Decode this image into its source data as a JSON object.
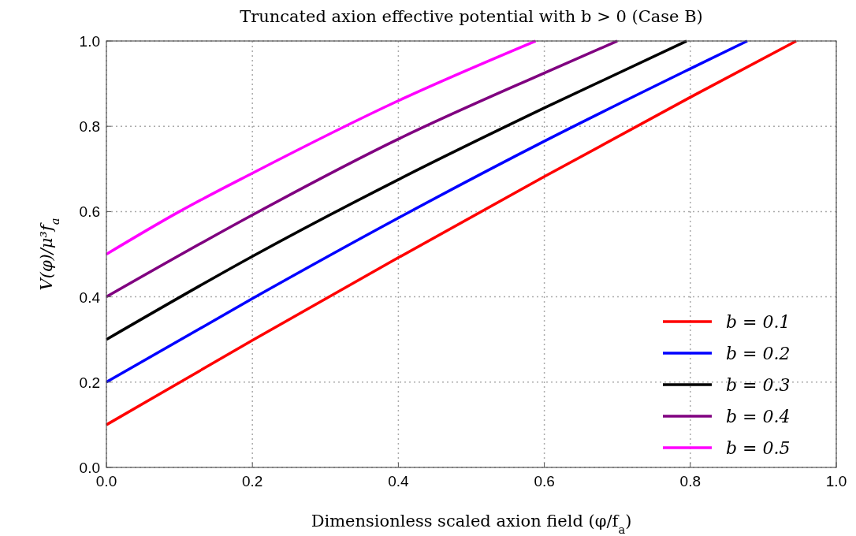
{
  "chart_data": {
    "type": "line",
    "title": "Truncated axion effective potential with b > 0 (Case B)",
    "xlabel": "Dimensionless scaled axion field (φ/f$_{a}$)",
    "ylabel": "V(φ)/μ³f$_{a}$",
    "xlim": [
      0,
      1
    ],
    "ylim": [
      0,
      1
    ],
    "xticks": [
      {
        "value": 0,
        "label": "0.0"
      },
      {
        "value": 0.2,
        "label": "0.2"
      },
      {
        "value": 0.4,
        "label": "0.4"
      },
      {
        "value": 0.6,
        "label": "0.6"
      },
      {
        "value": 0.8,
        "label": "0.8"
      },
      {
        "value": 1,
        "label": "1.0"
      }
    ],
    "yticks": [
      {
        "value": 0,
        "label": "0.0"
      },
      {
        "value": 0.2,
        "label": "0.2"
      },
      {
        "value": 0.4,
        "label": "0.4"
      },
      {
        "value": 0.6,
        "label": "0.6"
      },
      {
        "value": 0.8,
        "label": "0.8"
      },
      {
        "value": 1,
        "label": "1.0"
      }
    ],
    "grid": true,
    "legend": "bottom right",
    "line_style": "solid",
    "marker": "none",
    "series": [
      {
        "name": "b = 0.1",
        "color": "#ff0000",
        "x": [
          0,
          0.2,
          0.4,
          0.6,
          0.8,
          0.945
        ],
        "values": [
          0.1,
          0.298,
          0.492,
          0.682,
          0.868,
          1.0
        ]
      },
      {
        "name": "b = 0.2",
        "color": "#0000ff",
        "x": [
          0,
          0.2,
          0.4,
          0.6,
          0.8,
          0.878
        ],
        "values": [
          0.2,
          0.396,
          0.585,
          0.765,
          0.935,
          1.0
        ]
      },
      {
        "name": "b = 0.3",
        "color": "#000000",
        "x": [
          0,
          0.2,
          0.4,
          0.6,
          0.795
        ],
        "values": [
          0.3,
          0.495,
          0.675,
          0.843,
          1.0
        ]
      },
      {
        "name": "b = 0.4",
        "color": "#800080",
        "x": [
          0,
          0.2,
          0.4,
          0.6,
          0.7
        ],
        "values": [
          0.4,
          0.592,
          0.77,
          0.925,
          1.0
        ]
      },
      {
        "name": "b = 0.5",
        "color": "#ff00ff",
        "x": [
          0,
          0.1,
          0.2,
          0.4,
          0.588
        ],
        "values": [
          0.5,
          0.6,
          0.69,
          0.86,
          1.0
        ]
      }
    ]
  }
}
